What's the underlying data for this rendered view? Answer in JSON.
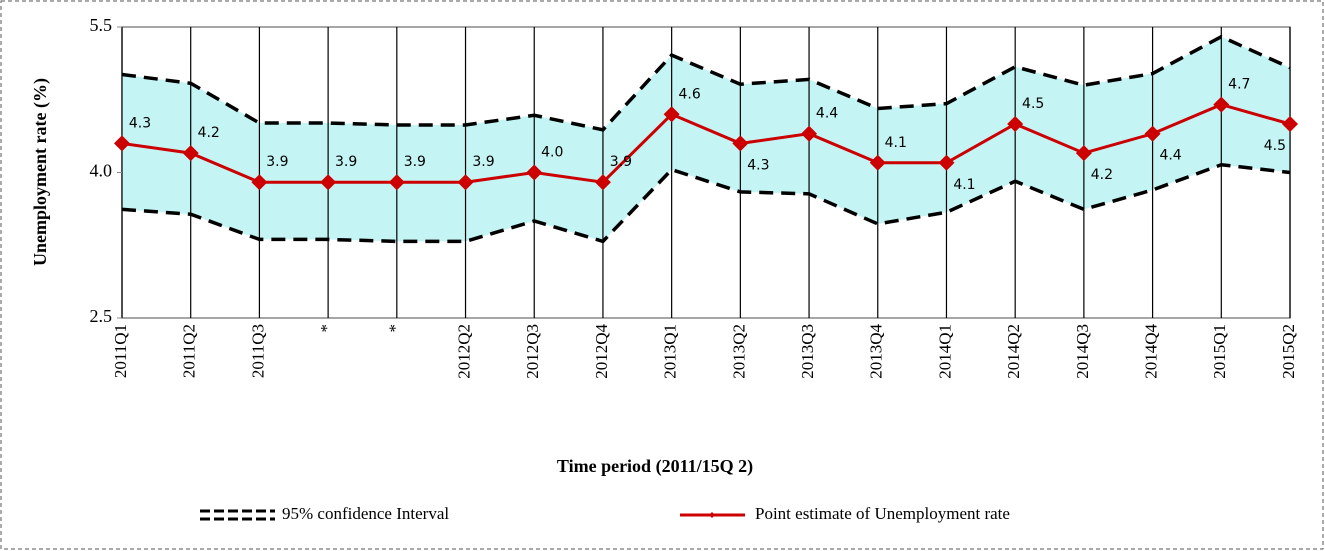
{
  "chart_data": {
    "type": "line",
    "x_label": "Time period (2011/15Q 2)",
    "y_label": "Unemployment rate (%)",
    "categories": [
      "2011Q1",
      "2011Q2",
      "2011Q3",
      "*",
      "*",
      "2012Q2",
      "2012Q3",
      "2012Q4",
      "2013Q1",
      "2013Q2",
      "2013Q3",
      "2013Q4",
      "2014Q1",
      "2014Q2",
      "2014Q3",
      "2014Q4",
      "2015Q1",
      "2015Q2"
    ],
    "ylim": [
      2.5,
      5.5
    ],
    "yticks": [
      2.5,
      {
        "value": 4,
        "label": "4.0"
      },
      5.5
    ],
    "grid": true,
    "legend": "bottom",
    "series": [
      {
        "name": "95% confidence Interval",
        "color": "#000000",
        "fill": "#c4f4f4",
        "upper": [
          5.01,
          4.92,
          4.51,
          4.51,
          4.49,
          4.49,
          4.59,
          4.44,
          5.21,
          4.91,
          4.96,
          4.66,
          4.71,
          5.09,
          4.9,
          5.02,
          5.4,
          5.08
        ],
        "lower": [
          3.62,
          3.57,
          3.31,
          3.31,
          3.29,
          3.29,
          3.5,
          3.29,
          4.03,
          3.8,
          3.78,
          3.47,
          3.59,
          3.91,
          3.62,
          3.82,
          4.08,
          4.0
        ]
      },
      {
        "name": "Point estimate of Unemployment rate",
        "color": "#cc0000",
        "values": [
          4.3,
          4.2,
          3.9,
          3.9,
          3.9,
          3.9,
          4.0,
          3.9,
          4.6,
          4.3,
          4.4,
          4.1,
          4.1,
          4.5,
          4.2,
          4.4,
          4.7,
          4.5
        ],
        "value_labels": [
          "4.3",
          "4.2",
          "3.9",
          "3.9",
          "3.9",
          "3.9",
          "4.0",
          "3.9",
          "4.6",
          "4.3",
          "4.4",
          "4.1",
          "4.1",
          "4.5",
          "4.2",
          "4.4",
          "4.7",
          "4.5"
        ]
      }
    ]
  }
}
